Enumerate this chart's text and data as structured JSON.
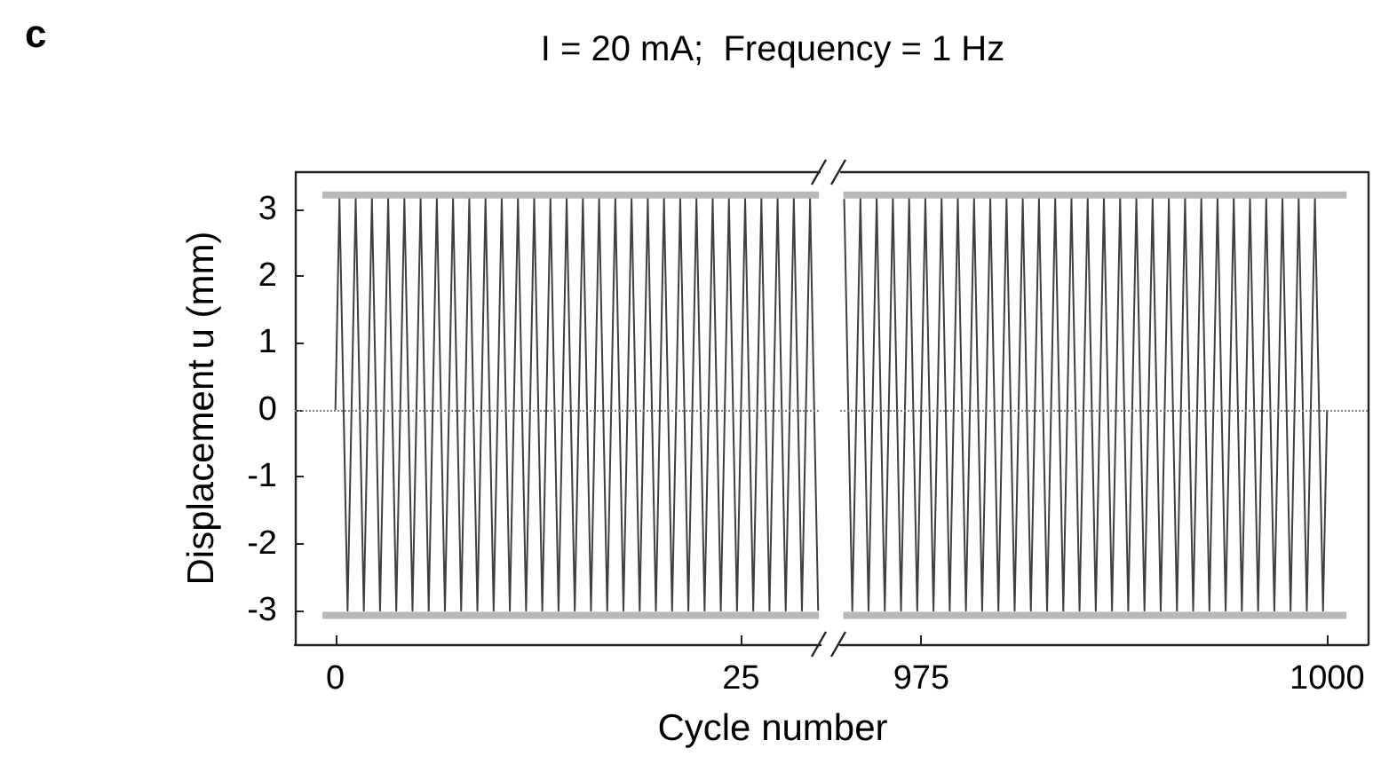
{
  "chart_data": [
    {
      "type": "line",
      "title": "I = 20 mA;  Frequency = 1 Hz",
      "xlabel": "Cycle number",
      "ylabel": "Displacement u (mm)",
      "annotations": [
        "c"
      ],
      "marker": "none",
      "xlim": [
        -2.5,
        29.9
      ],
      "xticks": [
        0,
        25
      ],
      "ylim": [
        -3.5,
        3.55
      ],
      "yticks": [
        -3,
        -2,
        -1,
        0,
        1,
        2,
        3
      ],
      "ref_lines": [
        {
          "axis": "y",
          "value": 0,
          "line_style": "dotted",
          "color": "#808080"
        }
      ],
      "series": [
        {
          "color": "#404040",
          "x": [
            0,
            0.25,
            0.75,
            1.25,
            1.75,
            2.25,
            2.75,
            3.25,
            3.75,
            4.25,
            4.75,
            5.25,
            5.75,
            6.25,
            6.75,
            7.25,
            7.75,
            8.25,
            8.75,
            9.25,
            9.75,
            10.25,
            10.75,
            11.25,
            11.75,
            12.25,
            12.75,
            13.25,
            13.75,
            14.25,
            14.75,
            15.25,
            15.75,
            16.25,
            16.75,
            17.25,
            17.75,
            18.25,
            18.75,
            19.25,
            19.75,
            20.25,
            20.75,
            21.25,
            21.75,
            22.25,
            22.75,
            23.25,
            23.75,
            24.25,
            24.75,
            25.25,
            25.75,
            26.25,
            26.75,
            27.25,
            27.75,
            28.25,
            28.75,
            29.25,
            29.75
          ],
          "values": [
            0,
            3.15,
            -3,
            3.15,
            -3,
            3.15,
            -3,
            3.15,
            -3,
            3.15,
            -3,
            3.15,
            -3,
            3.15,
            -3,
            3.15,
            -3,
            3.15,
            -3,
            3.15,
            -3,
            3.15,
            -3,
            3.15,
            -3,
            3.15,
            -3,
            3.15,
            -3,
            3.15,
            -3,
            3.15,
            -3,
            3.15,
            -3,
            3.15,
            -3,
            3.15,
            -3,
            3.15,
            -3,
            3.15,
            -3,
            3.15,
            -3,
            3.15,
            -3,
            3.15,
            -3,
            3.15,
            -3,
            3.15,
            -3,
            3.15,
            -3,
            3.15,
            -3,
            3.15,
            -3,
            3.15,
            -3
          ]
        },
        {
          "color": "#b8b8b8",
          "x": [
            -0.8,
            29.8
          ],
          "values": [
            3.21,
            3.21
          ]
        },
        {
          "color": "#b8b8b8",
          "x": [
            -0.8,
            29.8
          ],
          "values": [
            -3.07,
            -3.07
          ]
        }
      ]
    },
    {
      "type": "line",
      "marker": "none",
      "tick_labels": "x",
      "xlim": [
        970,
        1002.5
      ],
      "xticks": [
        975,
        1000
      ],
      "ylim": [
        -3.5,
        3.55
      ],
      "ref_lines": [
        {
          "axis": "y",
          "value": 0,
          "line_style": "dotted",
          "color": "#808080"
        }
      ],
      "series": [
        {
          "color": "#404040",
          "x": [
            970.25,
            970.75,
            971.25,
            971.75,
            972.25,
            972.75,
            973.25,
            973.75,
            974.25,
            974.75,
            975.25,
            975.75,
            976.25,
            976.75,
            977.25,
            977.75,
            978.25,
            978.75,
            979.25,
            979.75,
            980.25,
            980.75,
            981.25,
            981.75,
            982.25,
            982.75,
            983.25,
            983.75,
            984.25,
            984.75,
            985.25,
            985.75,
            986.25,
            986.75,
            987.25,
            987.75,
            988.25,
            988.75,
            989.25,
            989.75,
            990.25,
            990.75,
            991.25,
            991.75,
            992.25,
            992.75,
            993.25,
            993.75,
            994.25,
            994.75,
            995.25,
            995.75,
            996.25,
            996.75,
            997.25,
            997.75,
            998.25,
            998.75,
            999.25,
            999.75,
            1000
          ],
          "values": [
            3.15,
            -3,
            3.15,
            -3,
            3.15,
            -3,
            3.15,
            -3,
            3.15,
            -3,
            3.15,
            -3,
            3.15,
            -3,
            3.15,
            -3,
            3.15,
            -3,
            3.15,
            -3,
            3.15,
            -3,
            3.15,
            -3,
            3.15,
            -3,
            3.15,
            -3,
            3.15,
            -3,
            3.15,
            -3,
            3.15,
            -3,
            3.15,
            -3,
            3.15,
            -3,
            3.15,
            -3,
            3.15,
            -3,
            3.15,
            -3,
            3.15,
            -3,
            3.15,
            -3,
            3.15,
            -3,
            3.15,
            -3,
            3.15,
            -3,
            3.15,
            -3,
            3.15,
            -3,
            3.15,
            -3,
            0
          ]
        },
        {
          "color": "#b8b8b8",
          "x": [
            970.2,
            1001.2
          ],
          "values": [
            3.21,
            3.21
          ]
        },
        {
          "color": "#b8b8b8",
          "x": [
            970.2,
            1001.2
          ],
          "values": [
            -3.07,
            -3.07
          ]
        }
      ]
    }
  ]
}
